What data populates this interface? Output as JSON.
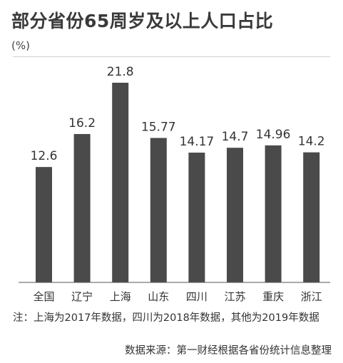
{
  "header": {
    "title": "部分省份65周岁及以上人口占比",
    "unit": "(%)"
  },
  "chart_data": {
    "type": "bar",
    "title": "部分省份65周岁及以上人口占比",
    "ylabel": "(%)",
    "xlabel": "",
    "categories": [
      "全国",
      "辽宁",
      "上海",
      "山东",
      "四川",
      "江苏",
      "重庆",
      "浙江"
    ],
    "values": [
      12.6,
      16.2,
      21.8,
      15.77,
      14.17,
      14.7,
      14.96,
      14.2
    ],
    "value_labels": [
      "12.6",
      "16.2",
      "21.8",
      "15.77",
      "14.17",
      "14.7",
      "14.96",
      "14.2"
    ],
    "ylim": [
      0,
      21.8
    ],
    "grid": false,
    "bar_color": "#4a4a4a"
  },
  "footer": {
    "note": "注：上海为2017年数据，四川为2018年数据，其他为2019年数据",
    "source": "数据来源：第一财经根据各省份统计信息整理"
  }
}
